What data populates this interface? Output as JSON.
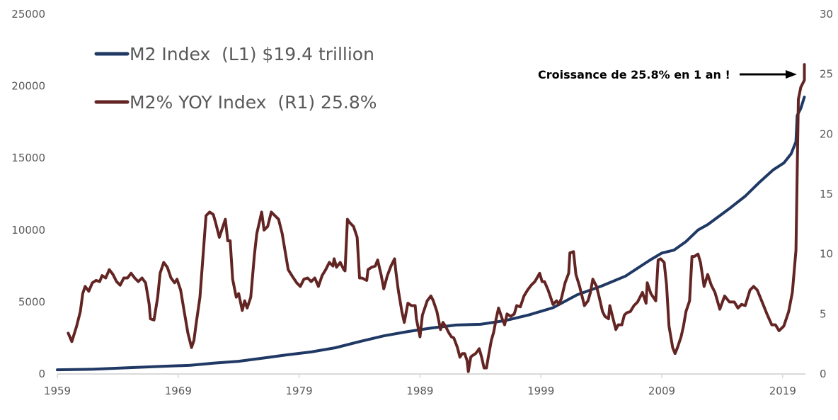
{
  "chart_data": {
    "type": "line",
    "title": "",
    "xlabel": "",
    "ylabel_left": "",
    "ylabel_right": "",
    "x_ticks": [
      "1959",
      "1969",
      "1979",
      "1989",
      "1999",
      "2009",
      "2019"
    ],
    "x_range": [
      1959,
      2021.8
    ],
    "y_left_ticks": [
      "0",
      "5000",
      "10000",
      "15000",
      "20000",
      "25000"
    ],
    "y_left_range": [
      0,
      25000
    ],
    "y_right_ticks": [
      "0",
      "5",
      "10",
      "15",
      "20",
      "25",
      "30"
    ],
    "y_right_range": [
      0,
      30
    ],
    "grid": false,
    "legend_position": "top-left",
    "colors": {
      "m2": "#1f3864",
      "yoy": "#632523",
      "axis": "#d9d9d9"
    },
    "series": [
      {
        "name": "M2 Index  (L1) $19.4 trillion",
        "axis": "left",
        "points": [
          [
            1959,
            290
          ],
          [
            1962,
            330
          ],
          [
            1965,
            440
          ],
          [
            1968,
            540
          ],
          [
            1970,
            600
          ],
          [
            1972,
            760
          ],
          [
            1974,
            880
          ],
          [
            1976,
            1100
          ],
          [
            1978,
            1330
          ],
          [
            1980,
            1530
          ],
          [
            1982,
            1820
          ],
          [
            1984,
            2250
          ],
          [
            1986,
            2650
          ],
          [
            1988,
            2950
          ],
          [
            1990,
            3200
          ],
          [
            1992,
            3400
          ],
          [
            1994,
            3450
          ],
          [
            1996,
            3700
          ],
          [
            1998,
            4100
          ],
          [
            2000,
            4600
          ],
          [
            2002,
            5500
          ],
          [
            2004,
            6100
          ],
          [
            2006,
            6800
          ],
          [
            2008,
            7900
          ],
          [
            2009,
            8400
          ],
          [
            2010,
            8600
          ],
          [
            2011,
            9200
          ],
          [
            2012,
            10000
          ],
          [
            2012.8,
            10380
          ],
          [
            2014.7,
            11560
          ],
          [
            2015.9,
            12350
          ],
          [
            2017.1,
            13330
          ],
          [
            2018.2,
            14170
          ],
          [
            2019.1,
            14660
          ],
          [
            2019.7,
            15300
          ],
          [
            2020.1,
            16140
          ],
          [
            2020.2,
            17960
          ],
          [
            2020.5,
            18450
          ],
          [
            2020.8,
            19240
          ]
        ]
      },
      {
        "name": "M2% YOY Index  (R1) 25.8%",
        "axis": "right",
        "points": [
          [
            1959.9,
            3.4
          ],
          [
            1960.2,
            2.7
          ],
          [
            1960.6,
            4.0
          ],
          [
            1960.9,
            5.2
          ],
          [
            1961.1,
            6.7
          ],
          [
            1961.3,
            7.3
          ],
          [
            1961.6,
            6.9
          ],
          [
            1961.9,
            7.6
          ],
          [
            1962.2,
            7.8
          ],
          [
            1962.5,
            7.7
          ],
          [
            1962.7,
            8.2
          ],
          [
            1963.0,
            8.0
          ],
          [
            1963.3,
            8.7
          ],
          [
            1963.6,
            8.3
          ],
          [
            1963.9,
            7.7
          ],
          [
            1964.2,
            7.4
          ],
          [
            1964.5,
            8.0
          ],
          [
            1964.8,
            8.0
          ],
          [
            1965.1,
            8.4
          ],
          [
            1965.4,
            8.0
          ],
          [
            1965.7,
            7.7
          ],
          [
            1966.0,
            8.0
          ],
          [
            1966.3,
            7.6
          ],
          [
            1966.6,
            5.8
          ],
          [
            1966.7,
            4.6
          ],
          [
            1967.0,
            4.5
          ],
          [
            1967.3,
            6.4
          ],
          [
            1967.5,
            8.4
          ],
          [
            1967.8,
            9.3
          ],
          [
            1968.1,
            8.9
          ],
          [
            1968.4,
            8.0
          ],
          [
            1968.7,
            7.6
          ],
          [
            1968.9,
            7.9
          ],
          [
            1969.2,
            7.0
          ],
          [
            1969.5,
            5.2
          ],
          [
            1969.8,
            3.4
          ],
          [
            1970.1,
            2.2
          ],
          [
            1970.3,
            2.8
          ],
          [
            1970.5,
            4.3
          ],
          [
            1970.8,
            6.4
          ],
          [
            1971.1,
            10.5
          ],
          [
            1971.3,
            13.2
          ],
          [
            1971.6,
            13.5
          ],
          [
            1971.9,
            13.3
          ],
          [
            1972.1,
            12.6
          ],
          [
            1972.4,
            11.4
          ],
          [
            1972.7,
            12.3
          ],
          [
            1972.9,
            12.9
          ],
          [
            1973.1,
            11.1
          ],
          [
            1973.3,
            11.1
          ],
          [
            1973.5,
            7.9
          ],
          [
            1973.8,
            6.4
          ],
          [
            1974.0,
            6.7
          ],
          [
            1974.3,
            5.3
          ],
          [
            1974.5,
            6.1
          ],
          [
            1974.7,
            5.5
          ],
          [
            1975.0,
            6.4
          ],
          [
            1975.3,
            9.9
          ],
          [
            1975.5,
            11.7
          ],
          [
            1975.9,
            13.5
          ],
          [
            1976.1,
            12.0
          ],
          [
            1976.4,
            12.3
          ],
          [
            1976.7,
            13.5
          ],
          [
            1977.0,
            13.2
          ],
          [
            1977.3,
            12.9
          ],
          [
            1977.6,
            11.7
          ],
          [
            1977.9,
            9.9
          ],
          [
            1978.1,
            8.7
          ],
          [
            1978.4,
            8.2
          ],
          [
            1978.8,
            7.6
          ],
          [
            1979.1,
            7.3
          ],
          [
            1979.4,
            7.9
          ],
          [
            1979.7,
            8.0
          ],
          [
            1980.0,
            7.7
          ],
          [
            1980.3,
            8.0
          ],
          [
            1980.6,
            7.3
          ],
          [
            1980.9,
            8.2
          ],
          [
            1981.2,
            8.7
          ],
          [
            1981.5,
            9.3
          ],
          [
            1981.8,
            9.0
          ],
          [
            1981.9,
            9.6
          ],
          [
            1982.1,
            8.9
          ],
          [
            1982.4,
            9.3
          ],
          [
            1982.7,
            8.7
          ],
          [
            1982.8,
            8.6
          ],
          [
            1983.0,
            12.9
          ],
          [
            1983.2,
            12.6
          ],
          [
            1983.5,
            12.3
          ],
          [
            1983.8,
            11.4
          ],
          [
            1984.0,
            8.0
          ],
          [
            1984.2,
            8.0
          ],
          [
            1984.6,
            7.8
          ],
          [
            1984.7,
            8.7
          ],
          [
            1985.0,
            8.9
          ],
          [
            1985.3,
            9.0
          ],
          [
            1985.5,
            9.5
          ],
          [
            1985.8,
            8.2
          ],
          [
            1986.0,
            7.1
          ],
          [
            1986.3,
            8.2
          ],
          [
            1986.6,
            9.0
          ],
          [
            1986.9,
            9.6
          ],
          [
            1987.0,
            8.6
          ],
          [
            1987.2,
            7.0
          ],
          [
            1987.5,
            5.2
          ],
          [
            1987.7,
            4.3
          ],
          [
            1988.0,
            5.9
          ],
          [
            1988.3,
            5.7
          ],
          [
            1988.6,
            5.7
          ],
          [
            1988.7,
            4.6
          ],
          [
            1989.0,
            3.1
          ],
          [
            1989.2,
            4.9
          ],
          [
            1989.6,
            6.1
          ],
          [
            1989.9,
            6.5
          ],
          [
            1990.1,
            6.1
          ],
          [
            1990.4,
            5.2
          ],
          [
            1990.7,
            3.7
          ],
          [
            1990.9,
            4.3
          ],
          [
            1991.1,
            4.0
          ],
          [
            1991.4,
            3.4
          ],
          [
            1991.6,
            3.1
          ],
          [
            1991.8,
            3.0
          ],
          [
            1992.1,
            2.2
          ],
          [
            1992.3,
            1.4
          ],
          [
            1992.5,
            1.7
          ],
          [
            1992.7,
            1.7
          ],
          [
            1992.9,
            1.1
          ],
          [
            1993.0,
            0.2
          ],
          [
            1993.2,
            1.4
          ],
          [
            1993.3,
            1.5
          ],
          [
            1993.6,
            1.7
          ],
          [
            1993.9,
            2.1
          ],
          [
            1994.1,
            1.4
          ],
          [
            1994.3,
            0.5
          ],
          [
            1994.5,
            0.5
          ],
          [
            1994.7,
            1.7
          ],
          [
            1994.9,
            2.8
          ],
          [
            1995.1,
            3.5
          ],
          [
            1995.3,
            4.6
          ],
          [
            1995.5,
            5.5
          ],
          [
            1995.8,
            4.6
          ],
          [
            1996.0,
            4.1
          ],
          [
            1996.2,
            5.0
          ],
          [
            1996.5,
            4.8
          ],
          [
            1996.8,
            5.0
          ],
          [
            1997.0,
            5.7
          ],
          [
            1997.3,
            5.6
          ],
          [
            1997.6,
            6.5
          ],
          [
            1997.9,
            7.0
          ],
          [
            1998.2,
            7.4
          ],
          [
            1998.5,
            7.7
          ],
          [
            1998.9,
            8.4
          ],
          [
            1999.1,
            7.7
          ],
          [
            1999.3,
            7.7
          ],
          [
            1999.6,
            7.0
          ],
          [
            1999.8,
            6.4
          ],
          [
            2000.0,
            5.8
          ],
          [
            2000.3,
            6.1
          ],
          [
            2000.5,
            5.8
          ],
          [
            2000.7,
            6.3
          ],
          [
            2001.0,
            7.6
          ],
          [
            2001.3,
            8.4
          ],
          [
            2001.4,
            10.1
          ],
          [
            2001.7,
            10.2
          ],
          [
            2001.9,
            8.3
          ],
          [
            2002.2,
            7.3
          ],
          [
            2002.4,
            6.5
          ],
          [
            2002.6,
            5.7
          ],
          [
            2002.9,
            6.1
          ],
          [
            2003.1,
            6.8
          ],
          [
            2003.3,
            7.9
          ],
          [
            2003.6,
            7.3
          ],
          [
            2003.8,
            6.5
          ],
          [
            2004.1,
            5.2
          ],
          [
            2004.3,
            4.8
          ],
          [
            2004.6,
            4.6
          ],
          [
            2004.7,
            5.7
          ],
          [
            2005.0,
            4.5
          ],
          [
            2005.2,
            3.7
          ],
          [
            2005.4,
            4.1
          ],
          [
            2005.7,
            4.1
          ],
          [
            2005.9,
            4.9
          ],
          [
            2006.1,
            5.1
          ],
          [
            2006.4,
            5.2
          ],
          [
            2006.7,
            5.7
          ],
          [
            2007.0,
            6.0
          ],
          [
            2007.2,
            6.4
          ],
          [
            2007.4,
            6.8
          ],
          [
            2007.7,
            5.9
          ],
          [
            2007.8,
            7.6
          ],
          [
            2008.1,
            6.7
          ],
          [
            2008.3,
            6.4
          ],
          [
            2008.5,
            6.1
          ],
          [
            2008.7,
            9.5
          ],
          [
            2008.9,
            9.6
          ],
          [
            2009.2,
            9.3
          ],
          [
            2009.4,
            7.4
          ],
          [
            2009.6,
            4.0
          ],
          [
            2009.9,
            2.2
          ],
          [
            2010.1,
            1.7
          ],
          [
            2010.3,
            2.2
          ],
          [
            2010.6,
            3.1
          ],
          [
            2010.8,
            4.0
          ],
          [
            2011.0,
            5.2
          ],
          [
            2011.3,
            6.1
          ],
          [
            2011.5,
            9.8
          ],
          [
            2011.7,
            9.8
          ],
          [
            2012.0,
            10.0
          ],
          [
            2012.2,
            9.3
          ],
          [
            2012.5,
            7.3
          ],
          [
            2012.8,
            8.3
          ],
          [
            2013.1,
            7.4
          ],
          [
            2013.4,
            6.8
          ],
          [
            2013.8,
            5.4
          ],
          [
            2014.2,
            6.5
          ],
          [
            2014.6,
            6.0
          ],
          [
            2015.0,
            6.0
          ],
          [
            2015.3,
            5.5
          ],
          [
            2015.6,
            5.8
          ],
          [
            2015.9,
            5.7
          ],
          [
            2016.3,
            7.0
          ],
          [
            2016.6,
            7.3
          ],
          [
            2016.9,
            7.0
          ],
          [
            2017.3,
            6.0
          ],
          [
            2017.7,
            5.0
          ],
          [
            2018.1,
            4.1
          ],
          [
            2018.4,
            4.1
          ],
          [
            2018.7,
            3.6
          ],
          [
            2019.1,
            4.0
          ],
          [
            2019.5,
            5.2
          ],
          [
            2019.8,
            6.8
          ],
          [
            2020.1,
            10.3
          ],
          [
            2020.2,
            16.6
          ],
          [
            2020.3,
            22.9
          ],
          [
            2020.5,
            23.9
          ],
          [
            2020.8,
            24.5
          ],
          [
            2020.8,
            25.8
          ]
        ]
      }
    ],
    "annotation": {
      "text": "Croissance de 25.8% en 1 an !",
      "target_value": 25.8
    }
  }
}
